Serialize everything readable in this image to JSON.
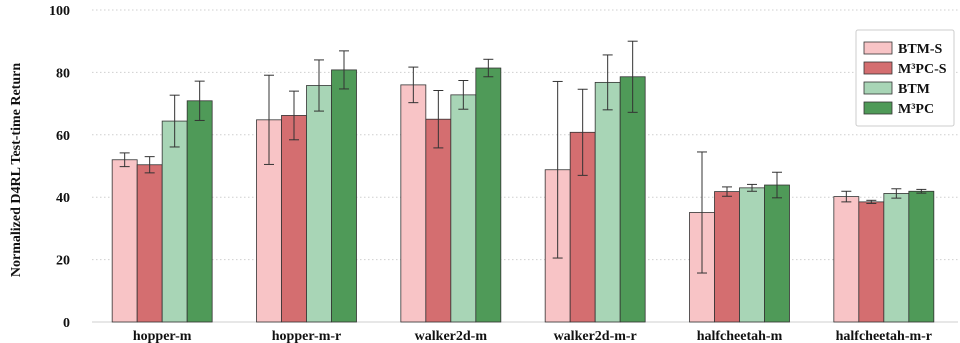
{
  "chart_data": {
    "type": "bar",
    "title": "",
    "xlabel": "",
    "ylabel": "Normalized D4RL Test-time Return",
    "ylim": [
      0,
      100
    ],
    "yticks": [
      0,
      20,
      40,
      60,
      80,
      100
    ],
    "grid": true,
    "legend_position": "top-right",
    "categories": [
      "hopper-m",
      "hopper-m-r",
      "walker2d-m",
      "walker2d-m-r",
      "halfcheetah-m",
      "halfcheetah-m-r"
    ],
    "series": [
      {
        "name": "BTM-S",
        "color": "#f8c4c6",
        "values": [
          52,
          64.8,
          76,
          48.8,
          35.1,
          40.2
        ],
        "errors": [
          2.2,
          14.3,
          5.7,
          28.3,
          19.4,
          1.7
        ]
      },
      {
        "name": "M³PC-S",
        "color": "#d46e70",
        "values": [
          50.4,
          66.2,
          65,
          60.8,
          41.8,
          38.5
        ],
        "errors": [
          2.6,
          7.8,
          9.2,
          13.8,
          1.5,
          0.5
        ]
      },
      {
        "name": "BTM",
        "color": "#a8d5b6",
        "values": [
          64.4,
          75.8,
          72.8,
          76.8,
          43,
          41.2
        ],
        "errors": [
          8.3,
          8.2,
          4.6,
          8.8,
          1.1,
          1.5
        ]
      },
      {
        "name": "M³PC",
        "color": "#4f9a58",
        "values": [
          70.9,
          80.8,
          81.4,
          78.6,
          43.9,
          41.9
        ],
        "errors": [
          6.3,
          6.1,
          2.8,
          11.4,
          4.1,
          0.6
        ]
      }
    ]
  }
}
